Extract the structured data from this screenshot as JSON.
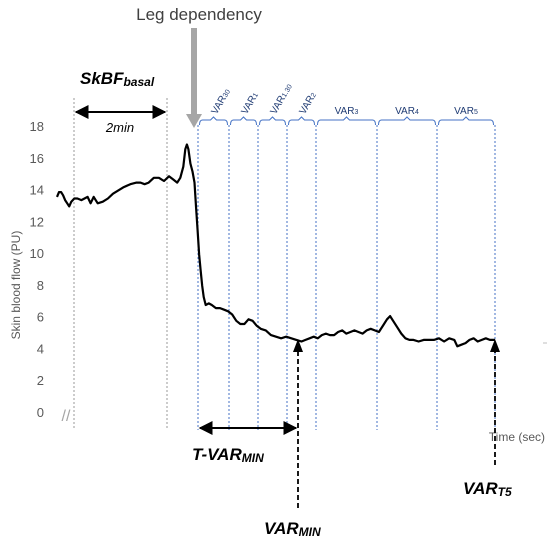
{
  "chart_data": {
    "type": "line",
    "title": "Leg dependency",
    "xlabel": "Time (sec)",
    "ylabel": "Skin blood flow (PU)",
    "ylim": [
      0,
      18
    ],
    "yticks": [
      "0",
      "2",
      "4",
      "6",
      "8",
      "10",
      "12",
      "14",
      "16",
      "18"
    ],
    "grid": false,
    "axis_break": "//",
    "series": [
      {
        "color": "#000000",
        "points": [
          [
            0,
            13.6
          ],
          [
            2,
            13.9
          ],
          [
            4,
            13.9
          ],
          [
            6,
            13.7
          ],
          [
            8,
            13.4
          ],
          [
            10,
            13.2
          ],
          [
            12,
            13.0
          ],
          [
            14,
            13.3
          ],
          [
            17,
            13.5
          ],
          [
            20,
            13.5
          ],
          [
            24,
            13.4
          ],
          [
            27,
            13.5
          ],
          [
            30,
            13.6
          ],
          [
            33,
            13.2
          ],
          [
            36,
            13.6
          ],
          [
            40,
            13.2
          ],
          [
            45,
            13.3
          ],
          [
            50,
            13.5
          ],
          [
            55,
            13.8
          ],
          [
            60,
            14.0
          ],
          [
            65,
            14.2
          ],
          [
            72,
            14.4
          ],
          [
            78,
            14.5
          ],
          [
            82,
            14.5
          ],
          [
            86,
            14.4
          ],
          [
            90,
            14.5
          ],
          [
            95,
            14.8
          ],
          [
            100,
            14.8
          ],
          [
            105,
            14.6
          ],
          [
            110,
            14.9
          ],
          [
            114,
            14.7
          ],
          [
            118,
            14.5
          ],
          [
            121,
            14.8
          ],
          [
            124,
            15.5
          ],
          [
            126,
            16.6
          ],
          [
            127.5,
            16.9
          ],
          [
            129,
            16.6
          ],
          [
            131,
            15.7
          ],
          [
            133,
            15.2
          ],
          [
            135,
            14.5
          ],
          [
            136.5,
            13.0
          ],
          [
            138,
            11.5
          ],
          [
            139.5,
            10.0
          ],
          [
            141,
            9.0
          ],
          [
            142.5,
            8.0
          ],
          [
            144,
            7.3
          ],
          [
            146,
            6.8
          ],
          [
            149,
            6.9
          ],
          [
            152,
            6.8
          ],
          [
            156,
            6.6
          ],
          [
            160,
            6.6
          ],
          [
            164,
            6.5
          ],
          [
            168,
            6.4
          ],
          [
            172,
            6.2
          ],
          [
            176,
            5.8
          ],
          [
            180,
            5.6
          ],
          [
            184,
            5.6
          ],
          [
            188,
            5.9
          ],
          [
            192,
            5.8
          ],
          [
            196,
            5.5
          ],
          [
            200,
            5.3
          ],
          [
            205,
            5.2
          ],
          [
            210,
            4.9
          ],
          [
            215,
            4.8
          ],
          [
            220,
            4.7
          ],
          [
            225,
            4.8
          ],
          [
            230,
            4.7
          ],
          [
            235,
            4.6
          ],
          [
            240,
            4.5
          ],
          [
            244,
            4.6
          ],
          [
            248,
            4.7
          ],
          [
            252,
            4.8
          ],
          [
            256,
            4.7
          ],
          [
            260,
            4.9
          ],
          [
            264,
            5.0
          ],
          [
            268,
            4.9
          ],
          [
            272,
            4.9
          ],
          [
            276,
            5.1
          ],
          [
            280,
            5.2
          ],
          [
            284,
            5.0
          ],
          [
            288,
            5.1
          ],
          [
            292,
            5.2
          ],
          [
            296,
            5.1
          ],
          [
            300,
            5.0
          ],
          [
            304,
            5.2
          ],
          [
            308,
            5.3
          ],
          [
            312,
            5.2
          ],
          [
            316,
            5.1
          ],
          [
            320,
            5.5
          ],
          [
            324,
            5.9
          ],
          [
            327,
            6.1
          ],
          [
            330,
            5.8
          ],
          [
            334,
            5.4
          ],
          [
            338,
            5.0
          ],
          [
            342,
            4.7
          ],
          [
            346,
            4.6
          ],
          [
            350,
            4.6
          ],
          [
            355,
            4.5
          ],
          [
            360,
            4.6
          ],
          [
            365,
            4.6
          ],
          [
            370,
            4.6
          ],
          [
            375,
            4.7
          ],
          [
            380,
            4.5
          ],
          [
            385,
            4.7
          ],
          [
            390,
            4.6
          ],
          [
            393,
            4.2
          ],
          [
            397,
            4.3
          ],
          [
            401,
            4.4
          ],
          [
            405,
            4.6
          ],
          [
            409,
            4.7
          ],
          [
            413,
            4.5
          ],
          [
            417,
            4.6
          ],
          [
            421,
            4.7
          ],
          [
            425,
            4.6
          ],
          [
            430,
            4.6
          ]
        ]
      }
    ],
    "phases": [
      "VAR30",
      "VAR1",
      "VAR1.30",
      "VAR2",
      "VAR3",
      "VAR4",
      "VAR5"
    ],
    "phase_base": [
      "VAR",
      "VAR",
      "VAR",
      "VAR",
      "VAR",
      "VAR",
      "VAR"
    ],
    "phase_sub": [
      "30",
      "1",
      "1.30",
      "2",
      "3",
      "4",
      "5"
    ],
    "annotations": {
      "basal_base": "SkBF",
      "basal_sub": "basal",
      "duration": "2min",
      "tvarmin_base": "T-VAR",
      "tvarmin_sub": "MIN",
      "varmin_base": "VAR",
      "varmin_sub": "MIN",
      "vart5_base": "VAR",
      "vart5_sub": "T5"
    }
  }
}
